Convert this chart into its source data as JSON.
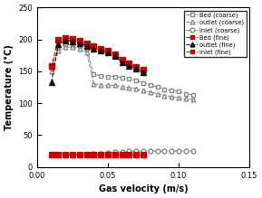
{
  "xlabel": "Gas velocity (m/s)",
  "ylabel": "Temperature (°C)",
  "xlim": [
    0,
    0.15
  ],
  "ylim": [
    0,
    250
  ],
  "xticks": [
    0,
    0.05,
    0.1,
    0.15
  ],
  "yticks": [
    0,
    50,
    100,
    150,
    200,
    250
  ],
  "bed_coarse_x": [
    0.01,
    0.015,
    0.02,
    0.025,
    0.03,
    0.035,
    0.04,
    0.045,
    0.05,
    0.055,
    0.06,
    0.065,
    0.07,
    0.075,
    0.08,
    0.085,
    0.09,
    0.095,
    0.1,
    0.105,
    0.11
  ],
  "bed_coarse_y": [
    155,
    188,
    192,
    192,
    190,
    185,
    145,
    143,
    142,
    142,
    140,
    138,
    136,
    132,
    128,
    126,
    122,
    120,
    118,
    115,
    113
  ],
  "outlet_coarse_x": [
    0.01,
    0.015,
    0.02,
    0.025,
    0.03,
    0.035,
    0.04,
    0.045,
    0.05,
    0.055,
    0.06,
    0.065,
    0.07,
    0.075,
    0.08,
    0.085,
    0.09,
    0.095,
    0.1,
    0.105,
    0.11
  ],
  "outlet_coarse_y": [
    150,
    182,
    188,
    188,
    186,
    180,
    130,
    129,
    128,
    128,
    126,
    125,
    123,
    120,
    117,
    115,
    112,
    110,
    109,
    107,
    106
  ],
  "inlet_coarse_x": [
    0.01,
    0.015,
    0.02,
    0.025,
    0.03,
    0.035,
    0.04,
    0.045,
    0.05,
    0.055,
    0.06,
    0.065,
    0.07,
    0.075,
    0.08,
    0.085,
    0.09,
    0.095,
    0.1,
    0.105,
    0.11
  ],
  "inlet_coarse_y": [
    20,
    20,
    20,
    20,
    20,
    20,
    21,
    21,
    22,
    23,
    24,
    25,
    25,
    25,
    25,
    25,
    25,
    25,
    25,
    25,
    25
  ],
  "bed_fine_x": [
    0.01,
    0.015,
    0.02,
    0.025,
    0.03,
    0.035,
    0.04,
    0.045,
    0.05,
    0.055,
    0.06,
    0.065,
    0.07,
    0.075
  ],
  "bed_fine_y": [
    158,
    200,
    203,
    201,
    198,
    194,
    190,
    186,
    182,
    177,
    168,
    162,
    157,
    152
  ],
  "outlet_fine_x": [
    0.01,
    0.015,
    0.02,
    0.025,
    0.03,
    0.035,
    0.04,
    0.045,
    0.05,
    0.055,
    0.06,
    0.065,
    0.07,
    0.075
  ],
  "outlet_fine_y": [
    133,
    193,
    198,
    197,
    194,
    190,
    186,
    182,
    179,
    174,
    164,
    159,
    154,
    149
  ],
  "inlet_fine_x": [
    0.01,
    0.015,
    0.02,
    0.025,
    0.03,
    0.035,
    0.04,
    0.045,
    0.05,
    0.055,
    0.06,
    0.065,
    0.07,
    0.075
  ],
  "inlet_fine_y": [
    20,
    20,
    20,
    20,
    20,
    20,
    20,
    20,
    20,
    20,
    20,
    20,
    20,
    20
  ],
  "color_gray": "#888888",
  "color_red": "#cc0000",
  "color_black": "#111111",
  "legend_labels": [
    "Bed (coarse)",
    "outlet (coarse)",
    "Inlet (coarse)",
    "Bed (fine)",
    "outlet (fine)",
    "Inlet (fine)"
  ]
}
